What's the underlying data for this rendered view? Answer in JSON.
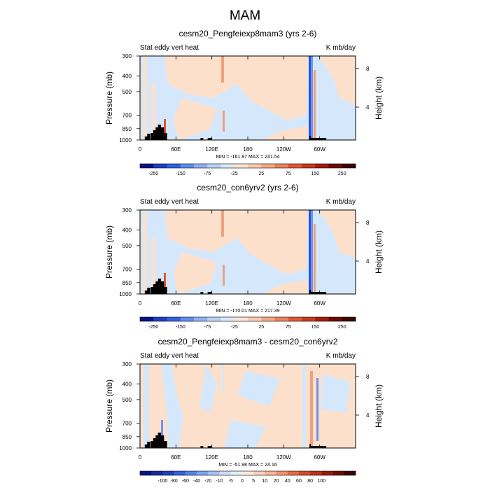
{
  "figure": {
    "title": "MAM"
  },
  "chart_data": [
    {
      "type": "heatmap",
      "title": "cesm20_Pengfeiexp8mam3 (yrs 2-6)",
      "left_label": "Stat eddy vert heat",
      "right_label": "K mb/day",
      "ylabel": "Pressure (mb)",
      "ylabel_right": "Height (km)",
      "x_ticks": [
        "0",
        "60E",
        "120E",
        "180",
        "120W",
        "60W"
      ],
      "y_ticks": [
        "300",
        "400",
        "500",
        "700",
        "850",
        "1000"
      ],
      "right_ticks": [
        "8",
        "4"
      ],
      "stats": "MIN = -161.97   MAX = 241.54",
      "colorbar_labels": [
        "-250",
        "-150",
        "-75",
        "-25",
        "25",
        "75",
        "150",
        "250"
      ],
      "x_range": [
        0,
        360
      ],
      "y_range": [
        1000,
        300
      ]
    },
    {
      "type": "heatmap",
      "title": "cesm20_con6yrv2 (yrs 2-6)",
      "left_label": "Stat eddy vert heat",
      "right_label": "K mb/day",
      "ylabel": "Pressure (mb)",
      "ylabel_right": "Height (km)",
      "x_ticks": [
        "0",
        "60E",
        "120E",
        "180",
        "120W",
        "60W"
      ],
      "y_ticks": [
        "300",
        "400",
        "500",
        "700",
        "850",
        "1000"
      ],
      "right_ticks": [
        "8",
        "4"
      ],
      "stats": "MIN = -170.01   MAX = 217.39",
      "colorbar_labels": [
        "-250",
        "-150",
        "-75",
        "-25",
        "25",
        "75",
        "150",
        "250"
      ],
      "x_range": [
        0,
        360
      ],
      "y_range": [
        1000,
        300
      ]
    },
    {
      "type": "heatmap",
      "title": "cesm20_Pengfeiexp8mam3 - cesm20_con6yrv2",
      "left_label": "Stat eddy vert heat",
      "right_label": "K mb/day",
      "ylabel": "Pressure (mb)",
      "ylabel_right": "Height (km)",
      "x_ticks": [
        "0",
        "60E",
        "120E",
        "180",
        "120W",
        "60W"
      ],
      "y_ticks": [
        "300",
        "400",
        "500",
        "700",
        "850",
        "1000"
      ],
      "right_ticks": [
        "8",
        "4"
      ],
      "stats": "MIN = -51.98   MAX = 24.16",
      "colorbar_labels": [
        "-100",
        "-80",
        "-60",
        "-40",
        "-20",
        "-10",
        "-5",
        "0",
        "5",
        "10",
        "20",
        "40",
        "60",
        "80",
        "100"
      ],
      "x_range": [
        0,
        360
      ],
      "y_range": [
        1000,
        300
      ]
    }
  ],
  "colors": {
    "neg3": "#2a52d8",
    "neg2": "#6f93ec",
    "neg1": "#d5e7fb",
    "pos1": "#fde0cc",
    "pos2": "#f0a07c",
    "pos3": "#e0562f",
    "terrain": "#000000"
  }
}
